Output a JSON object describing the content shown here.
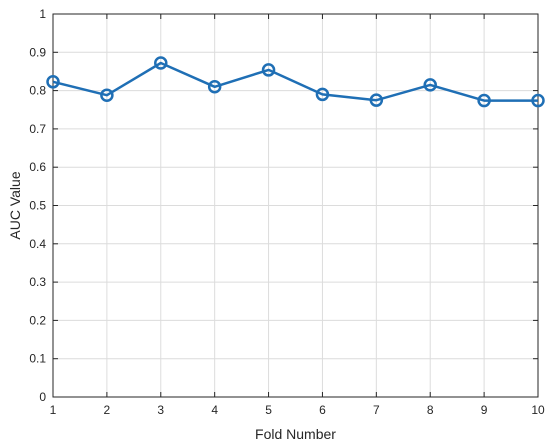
{
  "chart_data": {
    "type": "line",
    "title": "",
    "xlabel": "Fold Number",
    "ylabel": "AUC Value",
    "xlim": [
      1,
      10
    ],
    "ylim": [
      0,
      1
    ],
    "x_ticks": [
      "1",
      "2",
      "3",
      "4",
      "5",
      "6",
      "7",
      "8",
      "9",
      "10"
    ],
    "y_ticks": [
      "0",
      "0.1",
      "0.2",
      "0.3",
      "0.4",
      "0.5",
      "0.6",
      "0.7",
      "0.8",
      "0.9",
      "1"
    ],
    "grid": true,
    "series": [
      {
        "x": [
          1,
          2,
          3,
          4,
          5,
          6,
          7,
          8,
          9,
          10
        ],
        "values": [
          0.823,
          0.788,
          0.872,
          0.81,
          0.854,
          0.79,
          0.775,
          0.815,
          0.774,
          0.774
        ],
        "color": "#1f6fb5",
        "marker": "circle"
      }
    ]
  }
}
